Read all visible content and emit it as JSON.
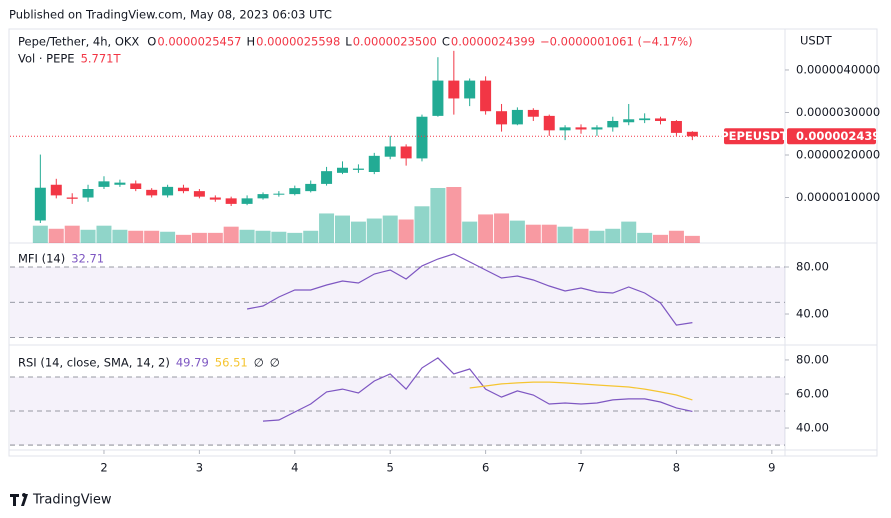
{
  "published": "Published on TradingView.com, May 08, 2023 06:03 UTC",
  "brand": "TradingView",
  "chart_data": {
    "type": "candlestick",
    "header": {
      "name": "Pepe/Tether, 4h, OKX",
      "ohlc": [
        {
          "label": "O",
          "value": "0.0000025457"
        },
        {
          "label": "H",
          "value": "0.0000025598"
        },
        {
          "label": "L",
          "value": "0.0000023500"
        },
        {
          "label": "C",
          "value": "0.0000024399"
        }
      ],
      "change": "−0.0000001061 (−4.17%)"
    },
    "volume_legend": {
      "name": "Vol · PEPE",
      "value_label": "5.771T"
    },
    "axis_unit": "USDT",
    "price_tag_symbol": "PEPEUSDT",
    "up_color": "#22ab94",
    "down_color": "#f23645",
    "x": [
      1.333,
      1.5,
      1.667,
      1.833,
      2,
      2.167,
      2.333,
      2.5,
      2.667,
      2.833,
      3,
      3.167,
      3.333,
      3.5,
      3.667,
      3.833,
      4,
      4.167,
      4.333,
      4.5,
      4.667,
      4.833,
      5,
      5.167,
      5.333,
      5.5,
      5.667,
      5.833,
      6,
      6.167,
      6.333,
      6.5,
      6.667,
      6.833,
      7,
      7.167,
      7.333,
      7.5,
      7.667,
      7.833,
      8,
      8.167
    ],
    "xlim": [
      1.015,
      9.138
    ],
    "xticks": [
      2,
      3,
      4,
      5,
      6,
      7,
      8,
      9
    ],
    "open": [
      4.6e-07,
      1.3e-06,
      1e-06,
      1e-06,
      1.25e-06,
      1.3e-06,
      1.33e-06,
      1.18e-06,
      1.05e-06,
      1.23e-06,
      1.15e-06,
      1e-06,
      9.8e-07,
      8.5e-07,
      9.8e-07,
      1.07e-06,
      1.08e-06,
      1.15e-06,
      1.32e-06,
      1.58e-06,
      1.65e-06,
      1.6e-06,
      1.96e-06,
      2.2e-06,
      1.92e-06,
      2.92e-06,
      3.75e-06,
      3.33e-06,
      3.75e-06,
      3.03e-06,
      2.72e-06,
      3.06e-06,
      2.92e-06,
      2.58e-06,
      2.65e-06,
      2.6e-06,
      2.65e-06,
      2.77e-06,
      2.82e-06,
      2.86e-06,
      2.8e-06,
      2.5457e-06
    ],
    "high": [
      2.01e-06,
      1.44e-06,
      1.1e-06,
      1.3e-06,
      1.5e-06,
      1.42e-06,
      1.4e-06,
      1.22e-06,
      1.3e-06,
      1.3e-06,
      1.2e-06,
      1.05e-06,
      1.02e-06,
      1.05e-06,
      1.12e-06,
      1.15e-06,
      1.28e-06,
      1.4e-06,
      1.72e-06,
      1.85e-06,
      1.78e-06,
      2.05e-06,
      2.45e-06,
      2.25e-06,
      2.95e-06,
      4.3e-06,
      4.45e-06,
      3.8e-06,
      3.85e-06,
      3.2e-06,
      3.12e-06,
      3.1e-06,
      2.95e-06,
      2.7e-06,
      2.72e-06,
      2.7e-06,
      2.9e-06,
      3.2e-06,
      2.98e-06,
      2.9e-06,
      2.82e-06,
      2.5598e-06
    ],
    "low": [
      4e-07,
      9.8e-07,
      8.5e-07,
      9e-07,
      1.2e-06,
      1.25e-06,
      1.15e-06,
      1e-06,
      1e-06,
      1.1e-06,
      9.8e-07,
      9e-07,
      8e-07,
      8.2e-07,
      9.5e-07,
      1.02e-06,
      1.05e-06,
      1.12e-06,
      1.28e-06,
      1.55e-06,
      1.58e-06,
      1.55e-06,
      1.9e-06,
      1.75e-06,
      1.85e-06,
      2.9e-06,
      2.95e-06,
      3.15e-06,
      2.95e-06,
      2.55e-06,
      2.7e-06,
      2.8e-06,
      2.45e-06,
      2.35e-06,
      2.5e-06,
      2.45e-06,
      2.55e-06,
      2.7e-06,
      2.75e-06,
      2.72e-06,
      2.45e-06,
      2.35e-06
    ],
    "close": [
      1.23e-06,
      1.05e-06,
      9.7e-07,
      1.2e-06,
      1.38e-06,
      1.35e-06,
      1.2e-06,
      1.05e-06,
      1.25e-06,
      1.15e-06,
      1.02e-06,
      9.5e-07,
      8.5e-07,
      9.8e-07,
      1.08e-06,
      1.09e-06,
      1.22e-06,
      1.32e-06,
      1.62e-06,
      1.7e-06,
      1.68e-06,
      1.98e-06,
      2.2e-06,
      1.92e-06,
      2.9e-06,
      3.75e-06,
      3.33e-06,
      3.75e-06,
      3.03e-06,
      2.72e-06,
      3.06e-06,
      2.9e-06,
      2.58e-06,
      2.65e-06,
      2.6e-06,
      2.65e-06,
      2.8e-06,
      2.84e-06,
      2.86e-06,
      2.8e-06,
      2.52e-06,
      2.4399e-06
    ],
    "volume": [
      14000000000000.0,
      11500000000000.0,
      14000000000000.0,
      10700000000000.0,
      14000000000000.0,
      10700000000000.0,
      9900000000000.0,
      9900000000000.0,
      9100000000000.0,
      6600000000000.0,
      8200000000000.0,
      8200000000000.0,
      13200000000000.0,
      10700000000000.0,
      9900000000000.0,
      9100000000000.0,
      8200000000000.0,
      9900000000000.0,
      23900000000000.0,
      22200000000000.0,
      17300000000000.0,
      19800000000000.0,
      22200000000000.0,
      19000000000000.0,
      29700000000000.0,
      44500000000000.0,
      45300000000000.0,
      17300000000000.0,
      23100000000000.0,
      23900000000000.0,
      18100000000000.0,
      14800000000000.0,
      14800000000000.0,
      13200000000000.0,
      11500000000000.0,
      9900000000000.0,
      11500000000000.0,
      17300000000000.0,
      8200000000000.0,
      6600000000000.0,
      9900000000000.0,
      5771000000000.0
    ],
    "ylim": [
      -7e-08,
      4.94e-06
    ],
    "yticks": [
      {
        "value": 1e-06,
        "label": "0.0000010000"
      },
      {
        "value": 2e-06,
        "label": "0.0000020000"
      },
      {
        "value": 3e-06,
        "label": "0.0000030000"
      },
      {
        "value": 4e-06,
        "label": "0.0000040000"
      }
    ],
    "mfi": {
      "type": "line",
      "title": "MFI (14)",
      "color": "#7e57c2",
      "values": [
        null,
        null,
        null,
        null,
        null,
        null,
        null,
        null,
        null,
        null,
        null,
        null,
        null,
        44.3,
        46.8,
        54.5,
        60.4,
        60.4,
        64.7,
        68.1,
        66.4,
        74,
        77.4,
        69.8,
        80.9,
        86.8,
        91.1,
        84.3,
        77.4,
        70.6,
        72.3,
        68.9,
        63.8,
        59.6,
        62.1,
        58.7,
        57.9,
        63,
        57.9,
        49.4,
        30.6,
        32.71
      ],
      "ylim": [
        16.2,
        98.7
      ],
      "yticks": [
        {
          "value": 40,
          "label": "40.00"
        },
        {
          "value": 80,
          "label": "80.00"
        }
      ],
      "bands": [
        80,
        50,
        20
      ]
    },
    "rsi": {
      "type": "line",
      "title": "RSI (14, close, SMA, 14, 2)",
      "extra": [
        "∅",
        "∅"
      ],
      "series": [
        {
          "color": "#7e57c2",
          "values": [
            null,
            null,
            null,
            null,
            null,
            null,
            null,
            null,
            null,
            null,
            null,
            null,
            null,
            null,
            44.1,
            44.7,
            49.4,
            54.1,
            61.2,
            62.9,
            60.6,
            67.6,
            71.8,
            62.9,
            75.3,
            81.2,
            71.8,
            74.7,
            62.9,
            58.2,
            61.8,
            59.4,
            54.1,
            54.7,
            54.1,
            54.7,
            56.5,
            57.1,
            57.1,
            55.3,
            51.8,
            49.79
          ]
        },
        {
          "color": "#f5c531",
          "values": [
            null,
            null,
            null,
            null,
            null,
            null,
            null,
            null,
            null,
            null,
            null,
            null,
            null,
            null,
            null,
            null,
            null,
            null,
            null,
            null,
            null,
            null,
            null,
            null,
            null,
            null,
            null,
            63.5,
            64.7,
            65.9,
            66.5,
            67,
            67,
            66.5,
            65.9,
            65.3,
            64.7,
            64.1,
            62.9,
            61.2,
            59.4,
            56.51
          ]
        }
      ],
      "ylim": [
        27.1,
        87.6
      ],
      "yticks": [
        {
          "value": 40,
          "label": "40.00"
        },
        {
          "value": 60,
          "label": "60.00"
        },
        {
          "value": 80,
          "label": "80.00"
        }
      ],
      "bands": [
        70,
        50,
        30
      ]
    }
  }
}
